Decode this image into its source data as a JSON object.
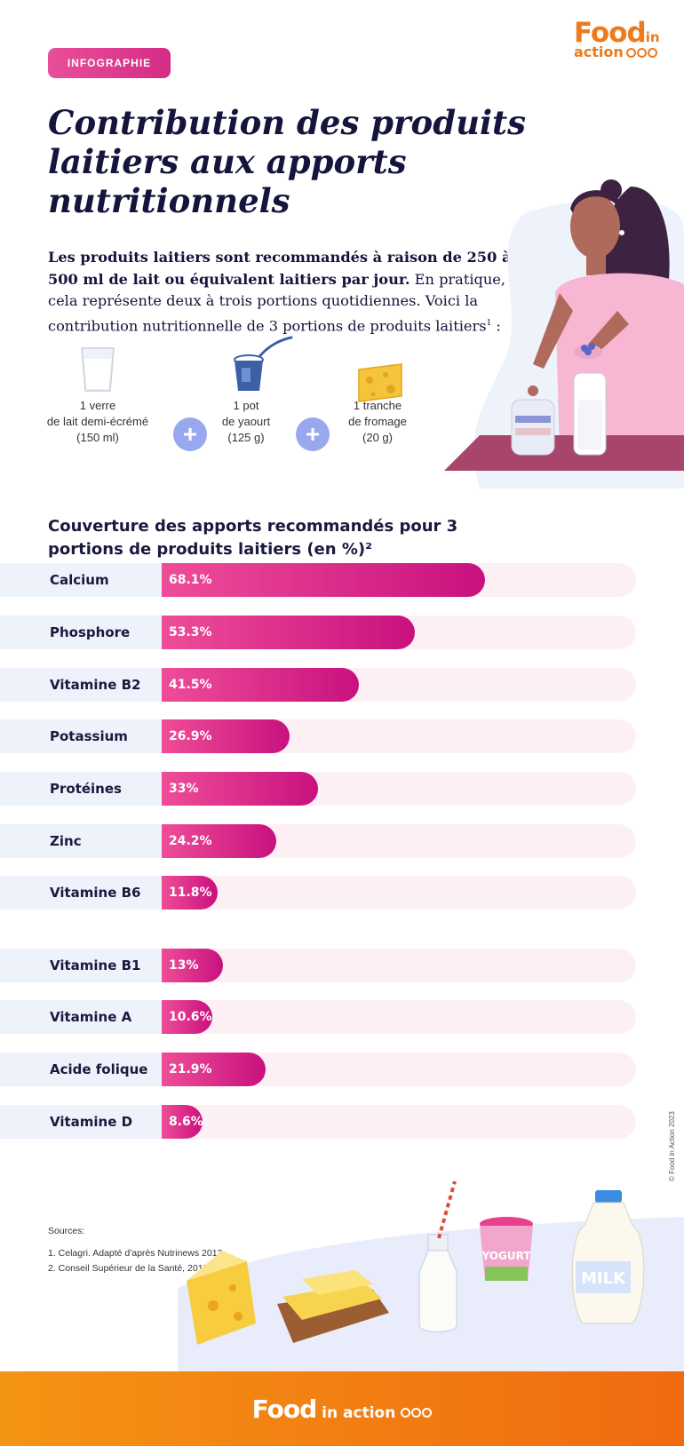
{
  "tag": "INFOGRAPHIE",
  "brand": {
    "word": "Food",
    "sub": "in",
    "action": "action"
  },
  "title": "Contribution des produits laitiers aux apports nutritionnels",
  "intro": {
    "bold": "Les produits laitiers sont recommandés à raison de 250 à 500 ml de lait ou équivalent laitiers par jour.",
    "rest": " En pratique, cela représente deux à trois portions quotidiennes. Voici la contribution nutritionnelle de 3 portions de produits laitiers",
    "sup": "1",
    "end": " :"
  },
  "portions": [
    {
      "l1": "1 verre",
      "l2": "de lait demi-écrémé",
      "l3": "(150 ml)"
    },
    {
      "l1": "1 pot",
      "l2": "de yaourt",
      "l3": "(125 g)"
    },
    {
      "l1": "1 tranche",
      "l2": "de fromage",
      "l3": "(20 g)"
    }
  ],
  "plus": "+",
  "chart_data": {
    "type": "bar",
    "orientation": "horizontal",
    "title": "Couverture des apports recommandés pour 3 portions de produits laitiers (en %)²",
    "unit": "%",
    "xlim": [
      0,
      100
    ],
    "categories": [
      "Calcium",
      "Phosphore",
      "Vitamine B2",
      "Potassium",
      "Protéines",
      "Zinc",
      "Vitamine B6",
      "Vitamine B1",
      "Vitamine A",
      "Acide folique",
      "Vitamine D"
    ],
    "values": [
      68.1,
      53.3,
      41.5,
      26.9,
      33,
      24.2,
      11.8,
      13,
      10.6,
      21.9,
      8.6
    ],
    "value_labels": [
      "68.1%",
      "53.3%",
      "41.5%",
      "26.9%",
      "33%",
      "24.2%",
      "11.8%",
      "13%",
      "10.6%",
      "21.9%",
      "8.6%"
    ],
    "bar_color": "#d81b87",
    "track_color": "#fdf0f5"
  },
  "sources": {
    "heading": "Sources:",
    "items": [
      "1. Celagri. Adapté d'après Nutrinews 2013.",
      "2. Conseil Supérieur de la Santé, 2019."
    ]
  },
  "copyright": "© Food in Action 2023",
  "illustrations": {
    "yogurt_text": "YOGURT",
    "milk_text": "MILK"
  },
  "colors": {
    "orange": "#f07a14",
    "pink": "#d81b87",
    "navy": "#14143c",
    "lavender": "#98a8ef"
  }
}
